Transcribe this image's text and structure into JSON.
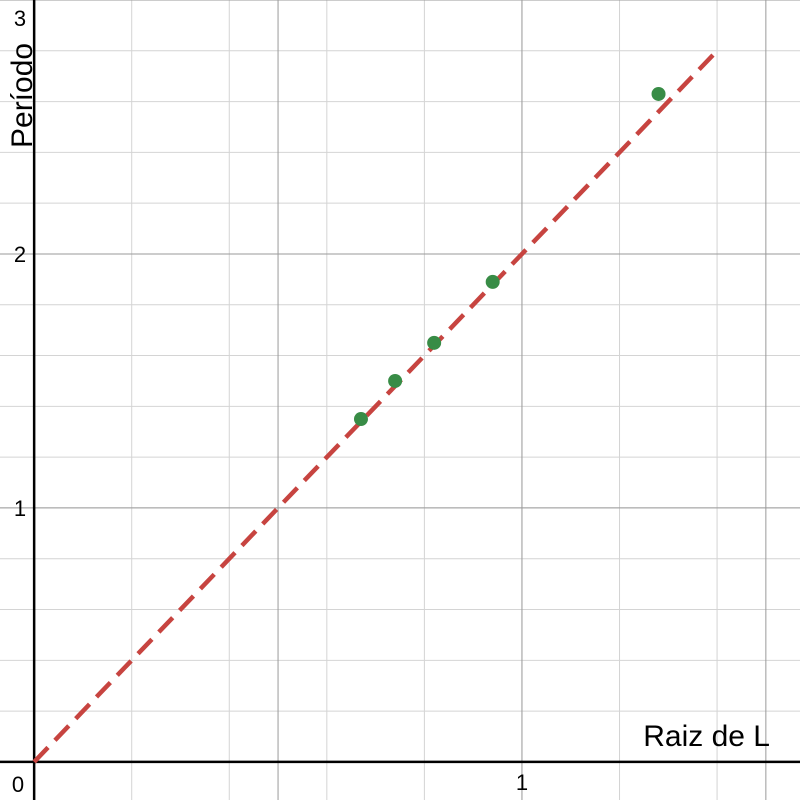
{
  "chart_data": {
    "type": "scatter",
    "xlabel": "Raiz de L",
    "ylabel": "Período",
    "xlim": [
      -0.07,
      1.57
    ],
    "ylim": [
      -0.15,
      3.0
    ],
    "x_ticks": [
      "0",
      "1"
    ],
    "y_ticks": [
      "1",
      "2",
      "3"
    ],
    "grid": true,
    "legend": "none",
    "points": [
      {
        "x": 0.67,
        "y": 1.35
      },
      {
        "x": 0.74,
        "y": 1.5
      },
      {
        "x": 0.82,
        "y": 1.65
      },
      {
        "x": 0.94,
        "y": 1.89
      },
      {
        "x": 1.28,
        "y": 2.63
      }
    ],
    "fit_line": {
      "style": "dashed",
      "x": [
        0,
        1.4
      ],
      "y": [
        0,
        2.8
      ]
    },
    "colors": {
      "points": "#388c46",
      "fit_line": "#c74440",
      "grid_major": "#9a9a9a",
      "grid_minor": "#d4d4d4",
      "axis": "#000000"
    }
  }
}
